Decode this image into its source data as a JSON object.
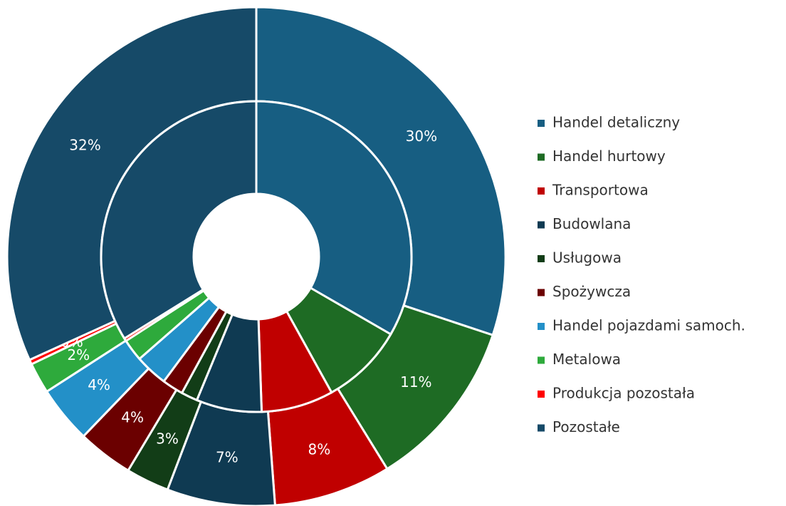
{
  "chart_data": {
    "type": "donut",
    "categories": [
      "Handel detaliczny",
      "Handel hurtowy",
      "Transportowa",
      "Budowlana",
      "Usługowa",
      "Spożywcza",
      "Handel pojazdami samoch.",
      "Metalowa",
      "Produkcja pozostała",
      "Pozostałe"
    ],
    "colors": [
      "#175e82",
      "#1e6b24",
      "#c00000",
      "#0f3a52",
      "#123d17",
      "#6b0000",
      "#2390c8",
      "#2eaa3c",
      "#ff0000",
      "#164a68"
    ],
    "series": [
      {
        "values": [
          30.1,
          11.1,
          7.6,
          7.0,
          2.8,
          3.6,
          3.7,
          2.0,
          0.3,
          31.8
        ],
        "value_labels": [
          "30%",
          "11%",
          "8%",
          "7%",
          "3%",
          "4%",
          "4%",
          "2%",
          "0%",
          "32%"
        ]
      },
      {
        "values": [
          33.3,
          8.6,
          7.5,
          6.8,
          1.7,
          2.2,
          3.4,
          2.3,
          0.3,
          33.8
        ]
      }
    ]
  }
}
